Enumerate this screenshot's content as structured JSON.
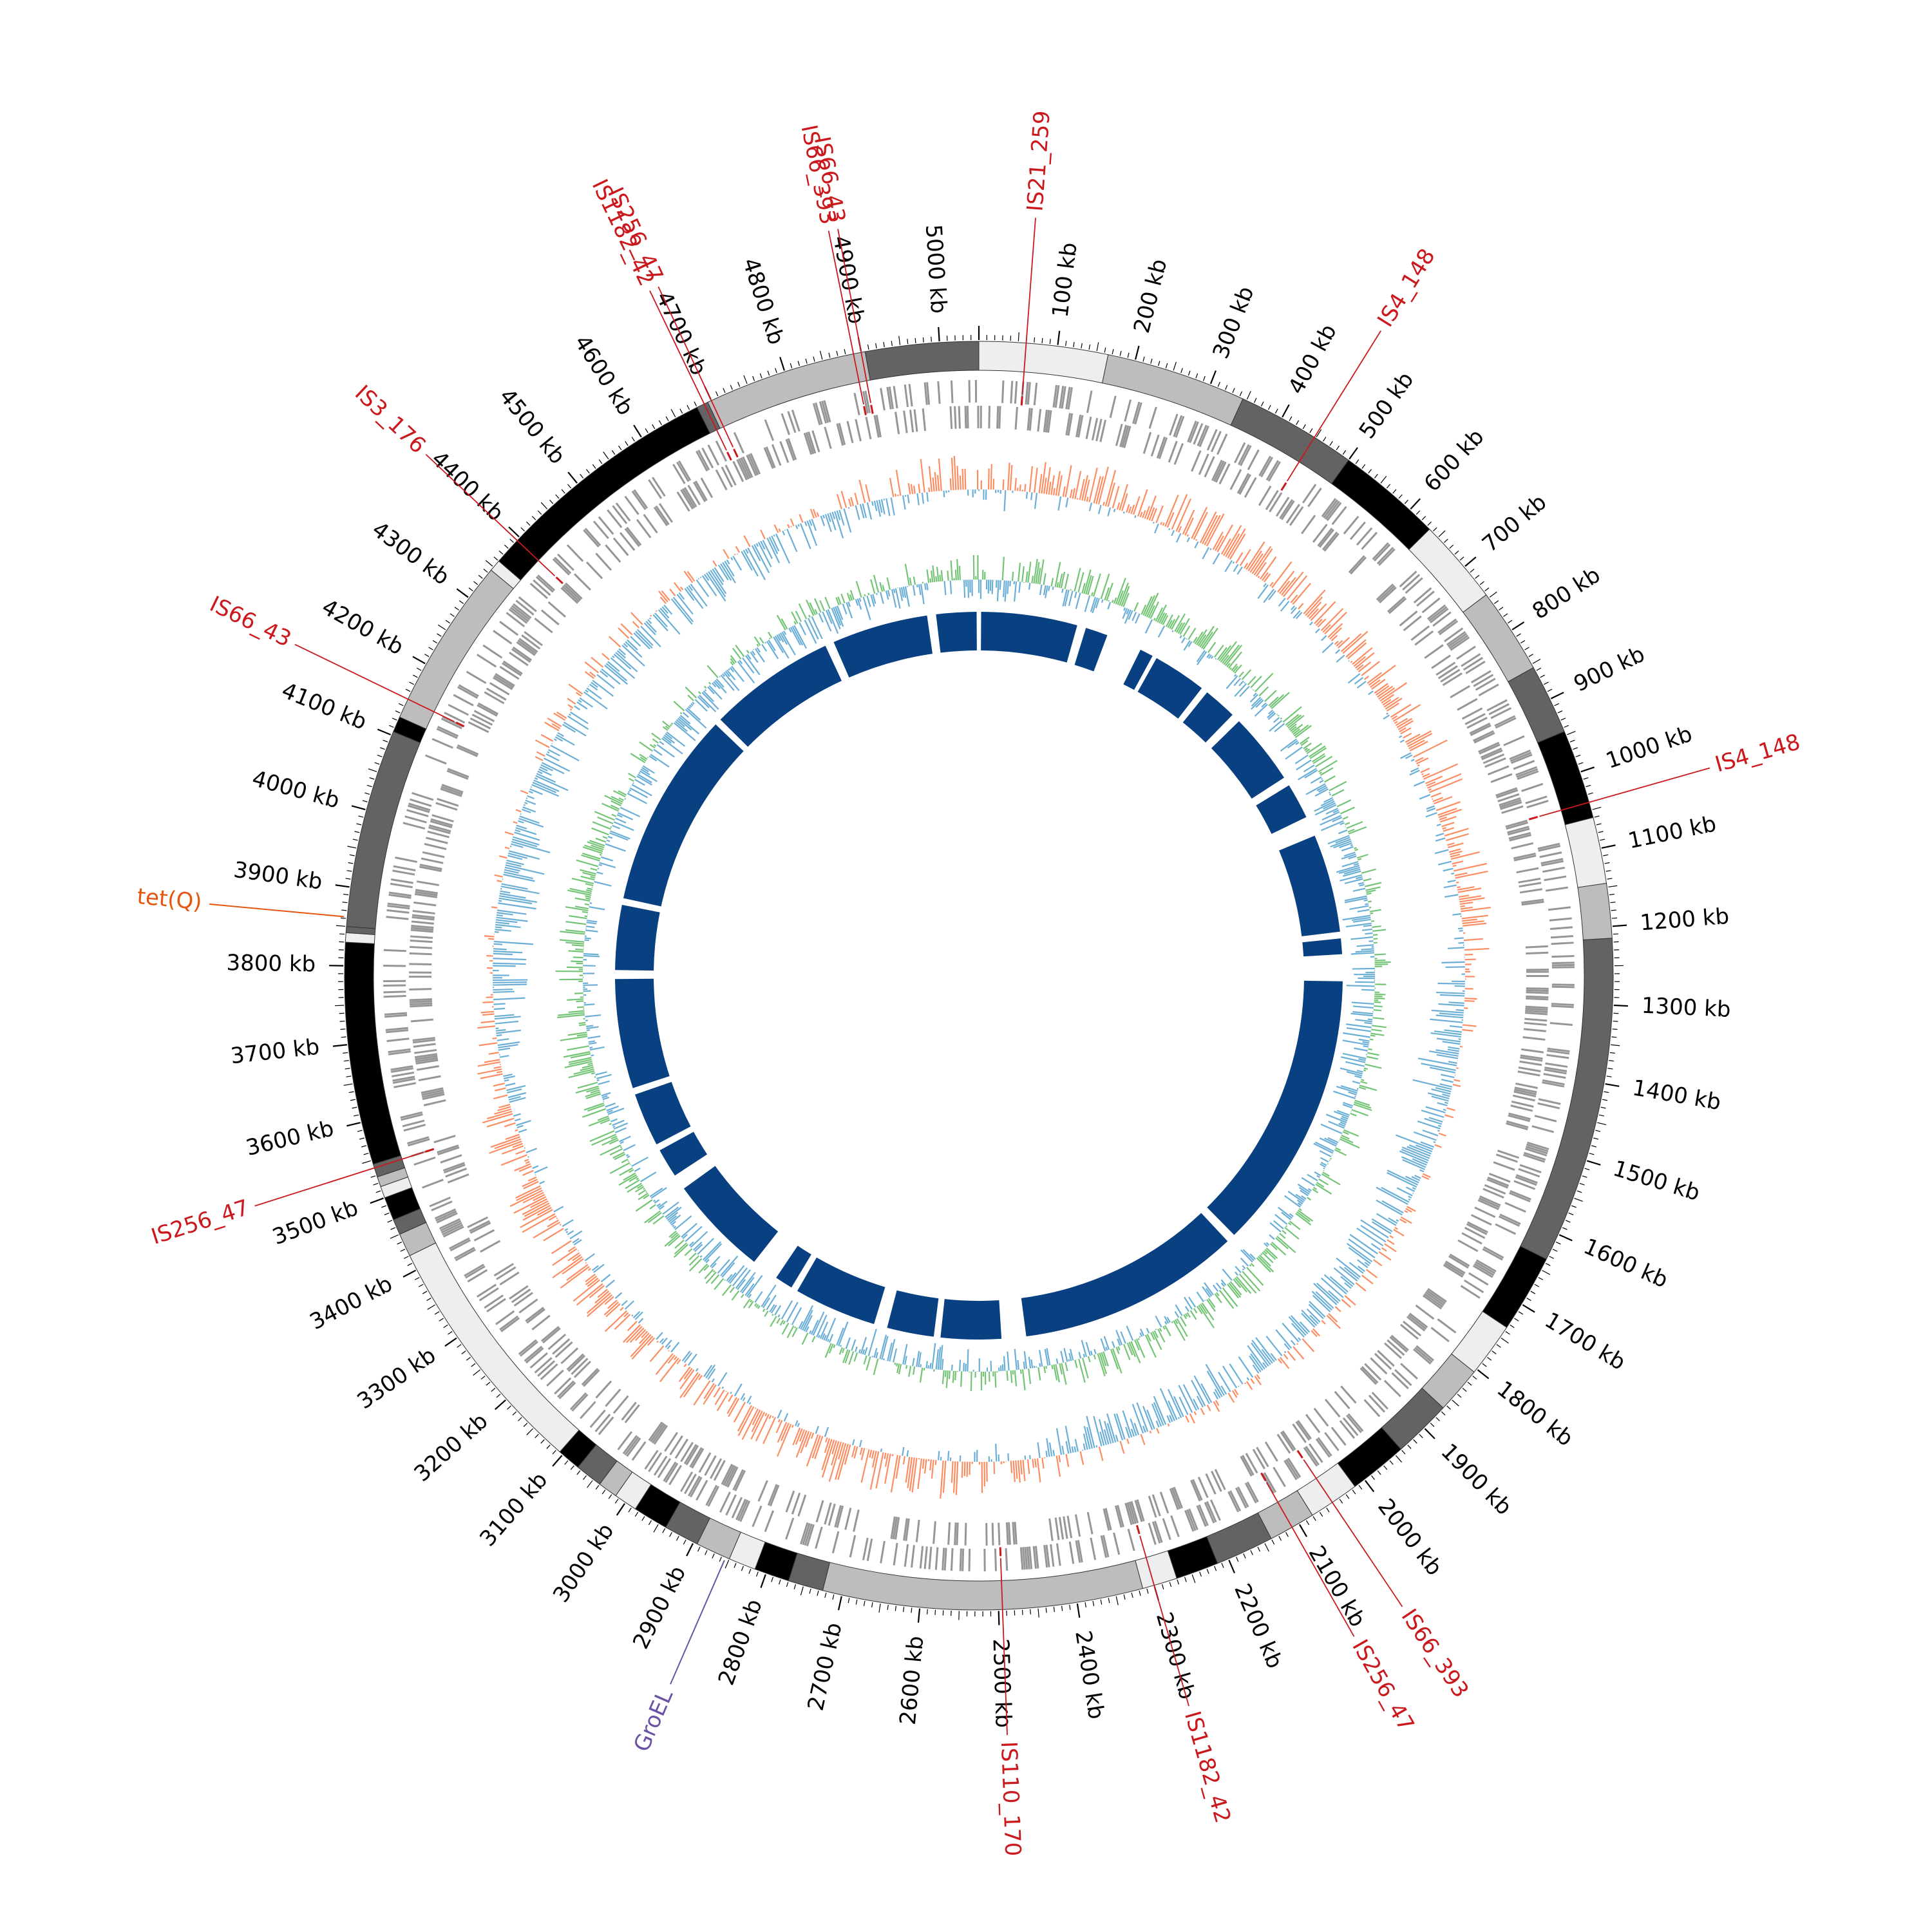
{
  "genome": {
    "length_kb": 5050,
    "tick_labels": [
      "100 kb",
      "200 kb",
      "300 kb",
      "400 kb",
      "500 kb",
      "600 kb",
      "700 kb",
      "800 kb",
      "900 kb",
      "1000 kb",
      "1100 kb",
      "1200 kb",
      "1300 kb",
      "1400 kb",
      "1500 kb",
      "1600 kb",
      "1700 kb",
      "1800 kb",
      "1900 kb",
      "2000 kb",
      "2100 kb",
      "2200 kb",
      "2300 kb",
      "2400 kb",
      "2500 kb",
      "2600 kb",
      "2700 kb",
      "2800 kb",
      "2900 kb",
      "3000 kb",
      "3100 kb",
      "3200 kb",
      "3300 kb",
      "3400 kb",
      "3500 kb",
      "3600 kb",
      "3700 kb",
      "3800 kb",
      "3900 kb",
      "4000 kb",
      "4100 kb",
      "4200 kb",
      "4300 kb",
      "4400 kb",
      "4500 kb",
      "4600 kb",
      "4700 kb",
      "4800 kb",
      "4900 kb",
      "5000 kb"
    ],
    "tick_positions_kb": [
      100,
      200,
      300,
      400,
      500,
      600,
      700,
      800,
      900,
      1000,
      1100,
      1200,
      1300,
      1400,
      1500,
      1600,
      1700,
      1800,
      1900,
      2000,
      2100,
      2200,
      2300,
      2400,
      2500,
      2600,
      2700,
      2800,
      2900,
      3000,
      3100,
      3200,
      3300,
      3400,
      3500,
      3600,
      3700,
      3800,
      3900,
      4000,
      4100,
      4200,
      4300,
      4400,
      4500,
      4600,
      4700,
      4800,
      4900,
      5000
    ]
  },
  "contig_blocks": [
    {
      "start": 0,
      "end": 165,
      "color": "#eeeeee"
    },
    {
      "start": 165,
      "end": 345,
      "color": "#bdbdbd"
    },
    {
      "start": 345,
      "end": 500,
      "color": "#636363"
    },
    {
      "start": 500,
      "end": 635,
      "color": "#000000"
    },
    {
      "start": 635,
      "end": 745,
      "color": "#eeeeee"
    },
    {
      "start": 745,
      "end": 855,
      "color": "#bdbdbd"
    },
    {
      "start": 855,
      "end": 945,
      "color": "#636363"
    },
    {
      "start": 945,
      "end": 1060,
      "color": "#000000"
    },
    {
      "start": 1060,
      "end": 1145,
      "color": "#eeeeee"
    },
    {
      "start": 1145,
      "end": 1215,
      "color": "#bdbdbd"
    },
    {
      "start": 1215,
      "end": 1635,
      "color": "#636363"
    },
    {
      "start": 1635,
      "end": 1735,
      "color": "#000000"
    },
    {
      "start": 1735,
      "end": 1805,
      "color": "#eeeeee"
    },
    {
      "start": 1805,
      "end": 1865,
      "color": "#bdbdbd"
    },
    {
      "start": 1865,
      "end": 1940,
      "color": "#636363"
    },
    {
      "start": 1940,
      "end": 2015,
      "color": "#000000"
    },
    {
      "start": 2015,
      "end": 2080,
      "color": "#eeeeee"
    },
    {
      "start": 2080,
      "end": 2140,
      "color": "#bdbdbd"
    },
    {
      "start": 2140,
      "end": 2215,
      "color": "#636363"
    },
    {
      "start": 2215,
      "end": 2270,
      "color": "#000000"
    },
    {
      "start": 2270,
      "end": 2315,
      "color": "#eeeeee"
    },
    {
      "start": 2315,
      "end": 2725,
      "color": "#bdbdbd"
    },
    {
      "start": 2725,
      "end": 2770,
      "color": "#636363"
    },
    {
      "start": 2770,
      "end": 2815,
      "color": "#000000"
    },
    {
      "start": 2815,
      "end": 2850,
      "color": "#eeeeee"
    },
    {
      "start": 2850,
      "end": 2895,
      "color": "#bdbdbd"
    },
    {
      "start": 2895,
      "end": 2940,
      "color": "#636363"
    },
    {
      "start": 2940,
      "end": 2985,
      "color": "#000000"
    },
    {
      "start": 2985,
      "end": 3015,
      "color": "#eeeeee"
    },
    {
      "start": 3015,
      "end": 3040,
      "color": "#bdbdbd"
    },
    {
      "start": 3040,
      "end": 3075,
      "color": "#636363"
    },
    {
      "start": 3075,
      "end": 3105,
      "color": "#000000"
    },
    {
      "start": 3105,
      "end": 3420,
      "color": "#eeeeee"
    },
    {
      "start": 3420,
      "end": 3450,
      "color": "#bdbdbd"
    },
    {
      "start": 3450,
      "end": 3470,
      "color": "#636363"
    },
    {
      "start": 3470,
      "end": 3500,
      "color": "#000000"
    },
    {
      "start": 3500,
      "end": 3515,
      "color": "#eeeeee"
    },
    {
      "start": 3515,
      "end": 3528,
      "color": "#bdbdbd"
    },
    {
      "start": 3528,
      "end": 3545,
      "color": "#636363"
    },
    {
      "start": 3545,
      "end": 3830,
      "color": "#000000"
    },
    {
      "start": 3830,
      "end": 3842,
      "color": "#eeeeee"
    },
    {
      "start": 3842,
      "end": 3850,
      "color": "#636363"
    },
    {
      "start": 3850,
      "end": 4105,
      "color": "#636363"
    },
    {
      "start": 4105,
      "end": 4125,
      "color": "#000000"
    },
    {
      "start": 4125,
      "end": 4345,
      "color": "#bdbdbd"
    },
    {
      "start": 4345,
      "end": 4360,
      "color": "#eeeeee"
    },
    {
      "start": 4360,
      "end": 4680,
      "color": "#000000"
    },
    {
      "start": 4680,
      "end": 4695,
      "color": "#636363"
    },
    {
      "start": 4695,
      "end": 4905,
      "color": "#bdbdbd"
    },
    {
      "start": 4905,
      "end": 5050,
      "color": "#636363"
    }
  ],
  "is_elements": [
    {
      "label": "IS21_259",
      "pos": 60,
      "color": "#cb181d"
    },
    {
      "label": "IS4_148",
      "pos": 448,
      "color": "#cb181d"
    },
    {
      "label": "IS4_148",
      "pos": 1040,
      "color": "#cb181d"
    },
    {
      "label": "IS66_393",
      "pos": 2050,
      "color": "#cb181d"
    },
    {
      "label": "IS256_47",
      "pos": 2110,
      "color": "#cb181d"
    },
    {
      "label": "IS1182_42",
      "pos": 2300,
      "color": "#cb181d"
    },
    {
      "label": "IS110_170",
      "pos": 2495,
      "color": "#cb181d"
    },
    {
      "label": "IS256_47",
      "pos": 3540,
      "color": "#cb181d"
    },
    {
      "label": "IS66_43",
      "pos": 4150,
      "color": "#cb181d"
    },
    {
      "label": "IS3_176",
      "pos": 4395,
      "color": "#cb181d"
    },
    {
      "label": "IS1182_42",
      "pos": 4690,
      "color": "#cb181d"
    },
    {
      "label": "IS256_47",
      "pos": 4700,
      "color": "#cb181d"
    },
    {
      "label": "IS66_393",
      "pos": 4890,
      "color": "#cb181d"
    },
    {
      "label": "IS66_43",
      "pos": 4900,
      "color": "#cb181d"
    }
  ],
  "gene_markers": [
    {
      "label": "tet(Q)",
      "pos": 3862,
      "color": "#e6550d"
    },
    {
      "label": "GroEL",
      "pos": 2855,
      "color": "#6a51a3"
    }
  ],
  "colors": {
    "gc_content_high": "#fc8d62",
    "gc_content_low": "#6baed6",
    "gc_skew_positive": "#74c476",
    "gc_skew_negative": "#6baed6",
    "homology_blocks": "#084081",
    "cds": "#969696",
    "ruler": "#000000"
  },
  "homology_blocks": [
    {
      "start": 5,
      "end": 220
    },
    {
      "start": 240,
      "end": 290
    },
    {
      "start": 370,
      "end": 400
    },
    {
      "start": 410,
      "end": 530
    },
    {
      "start": 545,
      "end": 620
    },
    {
      "start": 640,
      "end": 800
    },
    {
      "start": 820,
      "end": 900
    },
    {
      "start": 945,
      "end": 1165
    },
    {
      "start": 1180,
      "end": 1215
    },
    {
      "start": 1275,
      "end": 1900
    },
    {
      "start": 1920,
      "end": 2420
    },
    {
      "start": 2475,
      "end": 2610
    },
    {
      "start": 2625,
      "end": 2730
    },
    {
      "start": 2760,
      "end": 2945
    },
    {
      "start": 2960,
      "end": 3000
    },
    {
      "start": 3060,
      "end": 3285
    },
    {
      "start": 3320,
      "end": 3385
    },
    {
      "start": 3400,
      "end": 3520
    },
    {
      "start": 3535,
      "end": 3780
    },
    {
      "start": 3800,
      "end": 3945
    },
    {
      "start": 3960,
      "end": 4400
    },
    {
      "start": 4415,
      "end": 4700
    },
    {
      "start": 4720,
      "end": 4935
    },
    {
      "start": 4955,
      "end": 5045
    }
  ]
}
